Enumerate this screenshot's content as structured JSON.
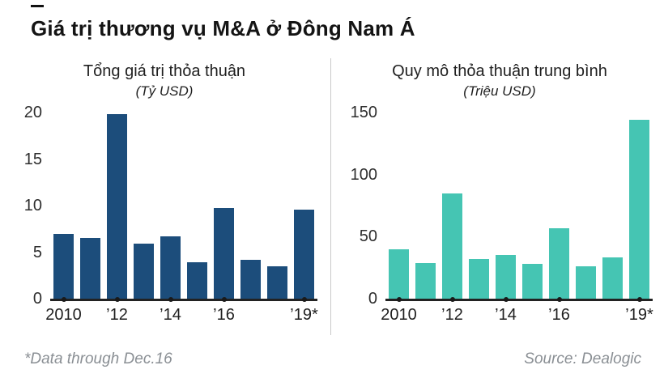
{
  "header": {
    "title": "Giá trị thương vụ M&A ở Đông Nam Á"
  },
  "footer": {
    "note": "*Data through Dec.16",
    "source": "Source: Dealogic"
  },
  "colors": {
    "left_bar": "#1c4d7b",
    "right_bar": "#45c5b3",
    "axis_line": "#222222",
    "divider": "#c9c9c9",
    "footer_text": "#8a8f94"
  },
  "chart_data": [
    {
      "type": "bar",
      "title": "Tổng giá trị thỏa thuận",
      "subtitle": "(Tỷ USD)",
      "categories": [
        "2010",
        "2011",
        "2012",
        "2013",
        "2014",
        "2015",
        "2016",
        "2017",
        "2018",
        "2019"
      ],
      "values": [
        7.0,
        6.5,
        19.8,
        5.9,
        6.7,
        3.9,
        9.7,
        4.2,
        3.5,
        9.6
      ],
      "ylim": [
        0,
        20
      ],
      "yticks": [
        0,
        5,
        10,
        15,
        20
      ],
      "xticks": [
        {
          "label": "2010",
          "bar": 0
        },
        {
          "label": "’12",
          "bar": 2
        },
        {
          "label": "’14",
          "bar": 4
        },
        {
          "label": "’16",
          "bar": 6
        },
        {
          "label": "’19*",
          "bar": 9
        }
      ],
      "bar_color": "#1c4d7b",
      "grid": false,
      "legend": "none"
    },
    {
      "type": "bar",
      "title": "Quy mô thỏa thuận trung bình",
      "subtitle": "(Triệu USD)",
      "categories": [
        "2010",
        "2011",
        "2012",
        "2013",
        "2014",
        "2015",
        "2016",
        "2017",
        "2018",
        "2019"
      ],
      "values": [
        40,
        29,
        85,
        32,
        35,
        28,
        57,
        26,
        33,
        144
      ],
      "ylim": [
        0,
        150
      ],
      "yticks": [
        0,
        50,
        100,
        150
      ],
      "xticks": [
        {
          "label": "2010",
          "bar": 0
        },
        {
          "label": "’12",
          "bar": 2
        },
        {
          "label": "’14",
          "bar": 4
        },
        {
          "label": "’16",
          "bar": 6
        },
        {
          "label": "’19*",
          "bar": 9
        }
      ],
      "bar_color": "#45c5b3",
      "grid": false,
      "legend": "none"
    }
  ]
}
